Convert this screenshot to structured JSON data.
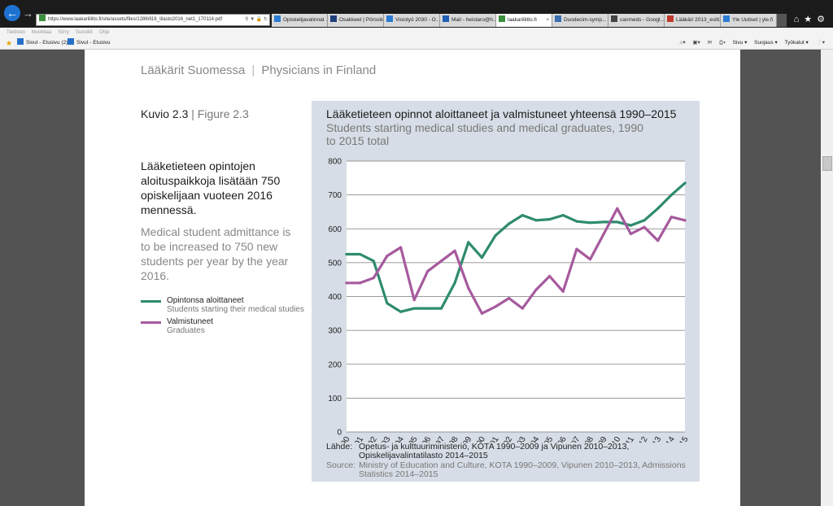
{
  "browser": {
    "url": "https://www.laakariliitto.fi/site/assets/files/1286/ll16_tilasto2016_net1_170114.pdf",
    "tabs": [
      {
        "label": "Opiskelijavalinnat ...",
        "color": "#2b7cd3",
        "active": false
      },
      {
        "label": "Osakkeet | Pörssik...",
        "color": "#1e3f7a",
        "active": false
      },
      {
        "label": "Visiotyö 2030 - O...",
        "color": "#2b7cd3",
        "active": false
      },
      {
        "label": "Mail - heistaro@h...",
        "color": "#1f5fb4",
        "active": false
      },
      {
        "label": "laakariliitto.fi",
        "color": "#3a8f3a",
        "active": true
      },
      {
        "label": "Duodecim-symp...",
        "color": "#3a6fb0",
        "active": false
      },
      {
        "label": "canmeds - Googl...",
        "color": "#444444",
        "active": false
      },
      {
        "label": "Lääkäri 2013_esitt...",
        "color": "#c0392b",
        "active": false
      },
      {
        "label": "Yle Uutiset | yle.fi",
        "color": "#2b7cd3",
        "active": false
      }
    ],
    "menu": [
      "Tiedosto",
      "Muokkaa",
      "Siirry",
      "Suosikit",
      "Ohje"
    ],
    "favorites": [
      "Sivut - Etusivu (2)",
      "Sivut - Etusivu"
    ],
    "commands": [
      "Sivu ▾",
      "Suojaus ▾",
      "Työkalut ▾"
    ]
  },
  "page": {
    "header_fi": "Lääkärit Suomessa",
    "header_sep": "|",
    "header_en": "Physicians in Finland",
    "figure_fi": "Kuvio 2.3",
    "figure_sep": " | ",
    "figure_en": "Figure 2.3",
    "text_fi": "Lääketieteen opintojen aloituspaikkoja lisätään 750 opiskelijaan vuoteen 2016 mennessä.",
    "text_en": "Medical student admittance is to be increased to 750 new students per year by the year 2016.",
    "legend": [
      {
        "fi": "Opintonsa aloittaneet",
        "en": "Students starting their medical studies",
        "color": "#2e8b6e"
      },
      {
        "fi": "Valmistuneet",
        "en": "Graduates",
        "color": "#a65a9d"
      }
    ],
    "source_fi_label": "Lähde:",
    "source_fi": "Opetus- ja kulttuuriministeriö, KOTA 1990–2009 ja Vipunen 2010–2013, Opiskelijavalintatilasto 2014–2015",
    "source_en_label": "Source:",
    "source_en": "Ministry of Education and Culture, KOTA 1990–2009, Vipunen 2010–2013, Admissions Statistics 2014–2015"
  },
  "chart_data": {
    "type": "line",
    "title": "Lääketieteen opinnot aloittaneet ja valmistuneet yhteensä 1990–2015",
    "subtitle": "Students starting medical studies and medical graduates, 1990 to 2015 total",
    "x": [
      1990,
      1991,
      1992,
      1993,
      1994,
      1995,
      1996,
      1997,
      1998,
      1999,
      2000,
      2001,
      2002,
      2003,
      2004,
      2005,
      2006,
      2007,
      2008,
      2009,
      2010,
      2011,
      2012,
      2013,
      2014,
      2015
    ],
    "ylim": [
      0,
      800
    ],
    "yticks": [
      0,
      100,
      200,
      300,
      400,
      500,
      600,
      700,
      800
    ],
    "grid": true,
    "series": [
      {
        "name": "Opintonsa aloittaneet",
        "color": "#2e8b6e",
        "values": [
          525,
          525,
          505,
          380,
          355,
          365,
          365,
          365,
          440,
          560,
          515,
          580,
          615,
          640,
          625,
          628,
          640,
          622,
          618,
          620,
          620,
          610,
          625,
          660,
          700,
          735
        ]
      },
      {
        "name": "Valmistuneet",
        "color": "#a65a9d",
        "values": [
          440,
          440,
          455,
          520,
          545,
          390,
          475,
          505,
          535,
          425,
          350,
          370,
          395,
          365,
          420,
          460,
          415,
          540,
          510,
          585,
          660,
          585,
          605,
          565,
          635,
          625
        ]
      }
    ]
  }
}
